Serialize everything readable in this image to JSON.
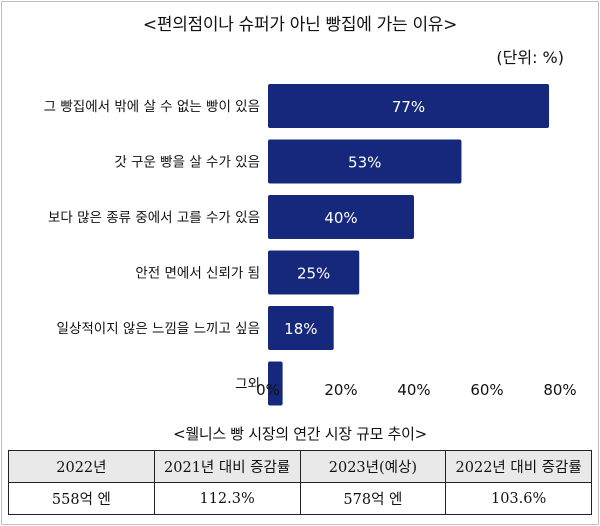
{
  "title": "<편의점이나 슈퍼가 아닌 빵집에 가는 이유>",
  "unit": "(단위: %)",
  "chart_data": {
    "type": "bar",
    "orientation": "horizontal",
    "title": "<편의점이나 슈퍼가 아닌 빵집에 가는 이유>",
    "categories": [
      "그 빵집에서 밖에 살 수 없는 빵이 있음",
      "갓 구운 빵을 살 수가 있음",
      "보다 많은 종류 중에서 고를 수가 있음",
      "안전 면에서 신뢰가 됨",
      "일상적이지 않은 느낌을 느끼고 싶음",
      "그외"
    ],
    "values": [
      77,
      53,
      40,
      25,
      18,
      4
    ],
    "data_labels": [
      "77%",
      "53%",
      "40%",
      "25%",
      "18%",
      ""
    ],
    "xlim": [
      0,
      80
    ],
    "ticks": [
      0,
      20,
      40,
      60,
      80
    ],
    "tick_labels": [
      "0%",
      "20%",
      "40%",
      "60%",
      "80%"
    ],
    "bar_color": "#16287c",
    "grid": false
  },
  "table": {
    "caption": "<웰니스 빵 시장의 연간 시장 규모 추이>",
    "headers": [
      "2022년",
      "2021년 대비 증감률",
      "2023년(예상)",
      "2022년 대비 증감률"
    ],
    "values": [
      "558억 엔",
      "112.3%",
      "578억 엔",
      "103.6%"
    ]
  }
}
